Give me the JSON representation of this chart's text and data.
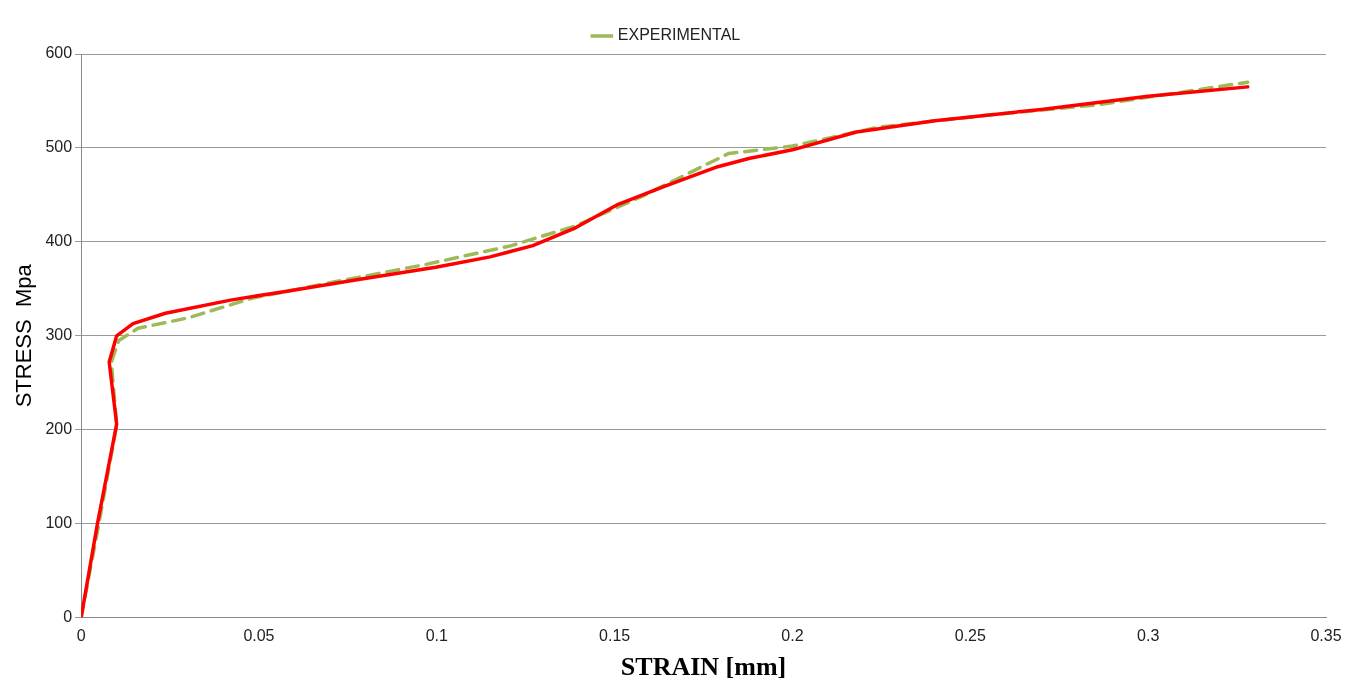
{
  "chart_data": {
    "type": "line",
    "xlabel": "STRAIN [mm]",
    "ylabel": "STRESS  Mpa",
    "xlim": [
      0,
      0.35
    ],
    "xticks": [
      0,
      0.05,
      0.1,
      0.15,
      0.2,
      0.25,
      0.3,
      0.35
    ],
    "ylim": [
      0,
      600
    ],
    "yticks": [
      0,
      100,
      200,
      300,
      400,
      500,
      600
    ],
    "grid": "y",
    "legend": "top",
    "marker": "none",
    "series": [
      {
        "color": "#ff0000",
        "line_style": "solid",
        "x": [
          0,
          0.0046,
          0.01,
          0.0079,
          0.01,
          0.0146,
          0.0237,
          0.042,
          0.057,
          0.078,
          0.0997,
          0.115,
          0.127,
          0.139,
          0.151,
          0.164,
          0.179,
          0.188,
          0.2,
          0.218,
          0.24,
          0.27,
          0.3,
          0.328
        ],
        "values": [
          0,
          100,
          206,
          272,
          300,
          313,
          324,
          338,
          347,
          360,
          373,
          384,
          396,
          415,
          440,
          459,
          480,
          489,
          498,
          517,
          529,
          541,
          555,
          565
        ]
      },
      {
        "name": "EXPERIMENTAL",
        "color": "#9bbb59",
        "line_style": "dashed",
        "x": [
          0,
          0.005,
          0.01,
          0.0085,
          0.0106,
          0.016,
          0.03,
          0.048,
          0.072,
          0.097,
          0.121,
          0.139,
          0.158,
          0.182,
          0.2,
          0.224,
          0.255,
          0.286,
          0.328
        ],
        "values": [
          0,
          100,
          205,
          272,
          295,
          308,
          319,
          340,
          358,
          376,
          396,
          417,
          449,
          494,
          502,
          522,
          535,
          546,
          570
        ]
      }
    ]
  }
}
